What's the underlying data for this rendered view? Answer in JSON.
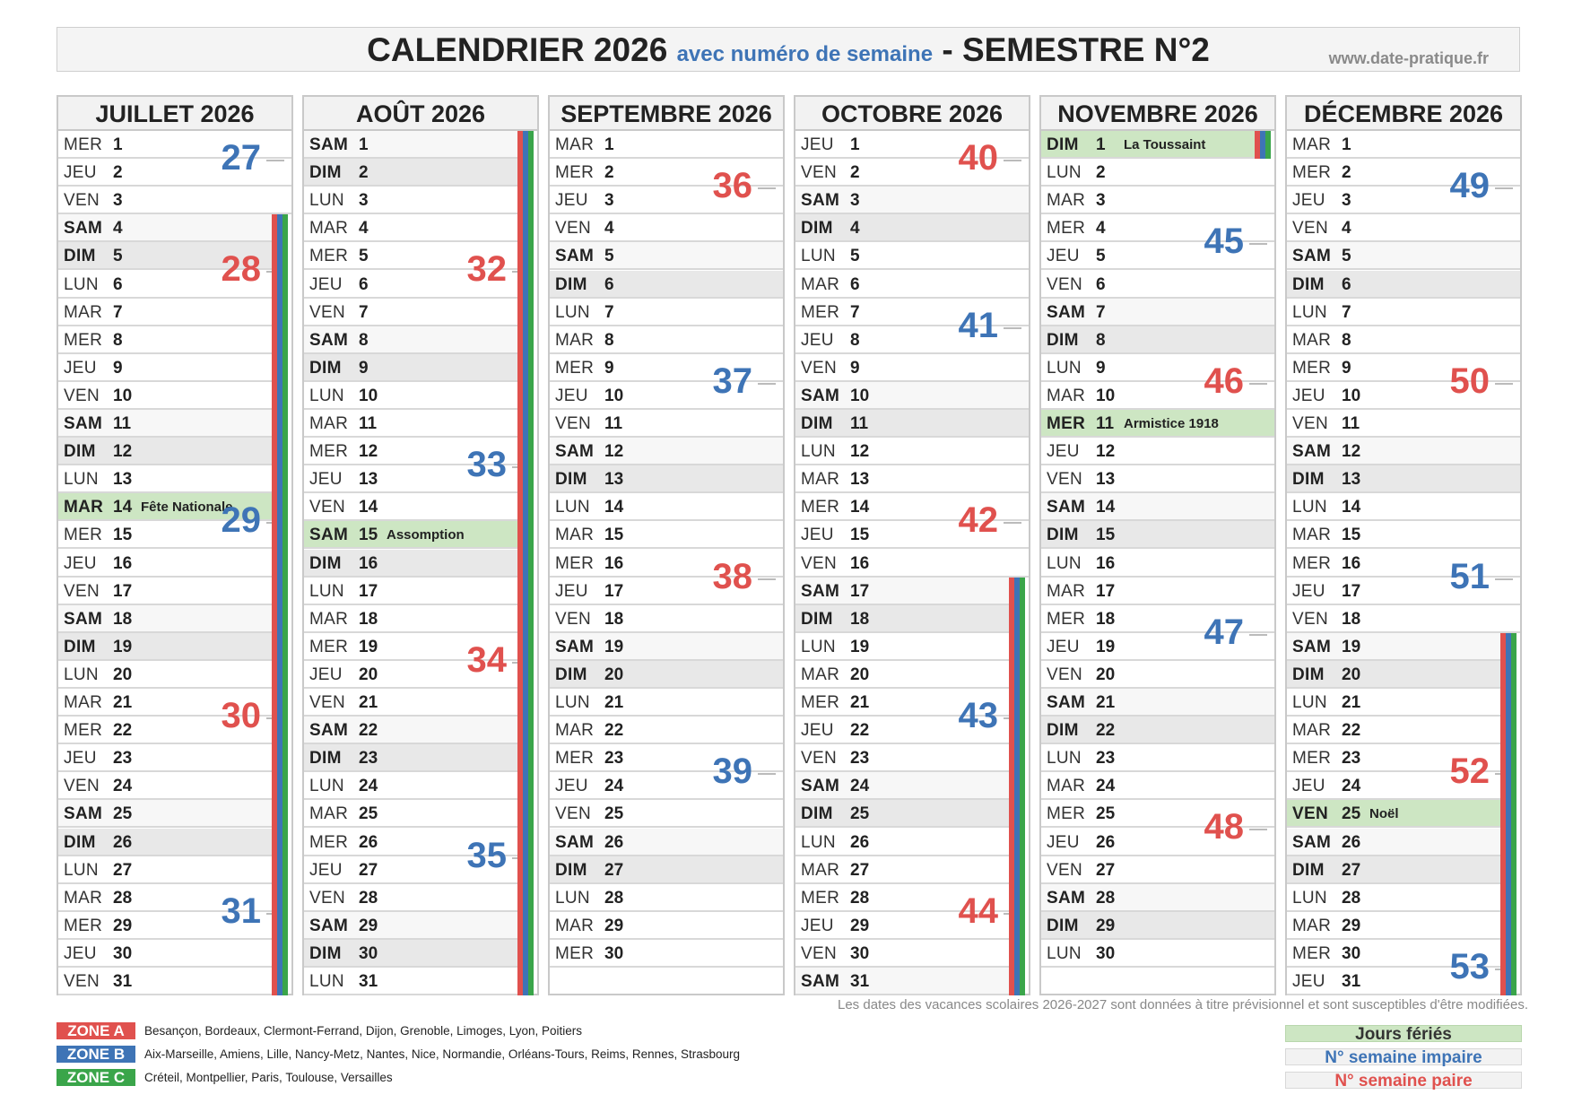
{
  "header": {
    "title": "CALENDRIER 2026",
    "subtitle": "avec numéro de semaine",
    "dash": "-",
    "semester": "SEMESTRE N°2",
    "website": "www.date-pratique.fr"
  },
  "colors": {
    "zone_a": "#e0514e",
    "zone_b": "#3e74b6",
    "zone_c": "#3aa54a",
    "holiday": "#cde6c3",
    "week_odd": "#3e74b6",
    "week_even": "#e0514e"
  },
  "months": [
    {
      "name": "JUILLET 2026",
      "days": [
        {
          "d": "MER",
          "n": "1"
        },
        {
          "d": "JEU",
          "n": "2"
        },
        {
          "d": "VEN",
          "n": "3"
        },
        {
          "d": "SAM",
          "n": "4"
        },
        {
          "d": "DIM",
          "n": "5"
        },
        {
          "d": "LUN",
          "n": "6"
        },
        {
          "d": "MAR",
          "n": "7"
        },
        {
          "d": "MER",
          "n": "8"
        },
        {
          "d": "JEU",
          "n": "9"
        },
        {
          "d": "VEN",
          "n": "10"
        },
        {
          "d": "SAM",
          "n": "11"
        },
        {
          "d": "DIM",
          "n": "12"
        },
        {
          "d": "LUN",
          "n": "13"
        },
        {
          "d": "MAR",
          "n": "14",
          "h": "Fête Nationale"
        },
        {
          "d": "MER",
          "n": "15"
        },
        {
          "d": "JEU",
          "n": "16"
        },
        {
          "d": "VEN",
          "n": "17"
        },
        {
          "d": "SAM",
          "n": "18"
        },
        {
          "d": "DIM",
          "n": "19"
        },
        {
          "d": "LUN",
          "n": "20"
        },
        {
          "d": "MAR",
          "n": "21"
        },
        {
          "d": "MER",
          "n": "22"
        },
        {
          "d": "JEU",
          "n": "23"
        },
        {
          "d": "VEN",
          "n": "24"
        },
        {
          "d": "SAM",
          "n": "25"
        },
        {
          "d": "DIM",
          "n": "26"
        },
        {
          "d": "LUN",
          "n": "27"
        },
        {
          "d": "MAR",
          "n": "28"
        },
        {
          "d": "MER",
          "n": "29"
        },
        {
          "d": "JEU",
          "n": "30"
        },
        {
          "d": "VEN",
          "n": "31"
        }
      ],
      "weeks": [
        {
          "w": "27",
          "row": 0
        },
        {
          "w": "28",
          "row": 4
        },
        {
          "w": "29",
          "row": 13
        },
        {
          "w": "30",
          "row": 20
        },
        {
          "w": "31",
          "row": 27
        }
      ],
      "vacation": {
        "from": 3,
        "to": 30
      }
    },
    {
      "name": "AOÛT 2026",
      "days": [
        {
          "d": "SAM",
          "n": "1"
        },
        {
          "d": "DIM",
          "n": "2"
        },
        {
          "d": "LUN",
          "n": "3"
        },
        {
          "d": "MAR",
          "n": "4"
        },
        {
          "d": "MER",
          "n": "5"
        },
        {
          "d": "JEU",
          "n": "6"
        },
        {
          "d": "VEN",
          "n": "7"
        },
        {
          "d": "SAM",
          "n": "8"
        },
        {
          "d": "DIM",
          "n": "9"
        },
        {
          "d": "LUN",
          "n": "10"
        },
        {
          "d": "MAR",
          "n": "11"
        },
        {
          "d": "MER",
          "n": "12"
        },
        {
          "d": "JEU",
          "n": "13"
        },
        {
          "d": "VEN",
          "n": "14"
        },
        {
          "d": "SAM",
          "n": "15",
          "h": "Assomption"
        },
        {
          "d": "DIM",
          "n": "16"
        },
        {
          "d": "LUN",
          "n": "17"
        },
        {
          "d": "MAR",
          "n": "18"
        },
        {
          "d": "MER",
          "n": "19"
        },
        {
          "d": "JEU",
          "n": "20"
        },
        {
          "d": "VEN",
          "n": "21"
        },
        {
          "d": "SAM",
          "n": "22"
        },
        {
          "d": "DIM",
          "n": "23"
        },
        {
          "d": "LUN",
          "n": "24"
        },
        {
          "d": "MAR",
          "n": "25"
        },
        {
          "d": "MER",
          "n": "26"
        },
        {
          "d": "JEU",
          "n": "27"
        },
        {
          "d": "VEN",
          "n": "28"
        },
        {
          "d": "SAM",
          "n": "29"
        },
        {
          "d": "DIM",
          "n": "30"
        },
        {
          "d": "LUN",
          "n": "31"
        }
      ],
      "weeks": [
        {
          "w": "32",
          "row": 4
        },
        {
          "w": "33",
          "row": 11
        },
        {
          "w": "34",
          "row": 18
        },
        {
          "w": "35",
          "row": 25
        }
      ],
      "vacation": {
        "from": 0,
        "to": 30
      }
    },
    {
      "name": "SEPTEMBRE 2026",
      "days": [
        {
          "d": "MAR",
          "n": "1"
        },
        {
          "d": "MER",
          "n": "2"
        },
        {
          "d": "JEU",
          "n": "3"
        },
        {
          "d": "VEN",
          "n": "4"
        },
        {
          "d": "SAM",
          "n": "5"
        },
        {
          "d": "DIM",
          "n": "6"
        },
        {
          "d": "LUN",
          "n": "7"
        },
        {
          "d": "MAR",
          "n": "8"
        },
        {
          "d": "MER",
          "n": "9"
        },
        {
          "d": "JEU",
          "n": "10"
        },
        {
          "d": "VEN",
          "n": "11"
        },
        {
          "d": "SAM",
          "n": "12"
        },
        {
          "d": "DIM",
          "n": "13"
        },
        {
          "d": "LUN",
          "n": "14"
        },
        {
          "d": "MAR",
          "n": "15"
        },
        {
          "d": "MER",
          "n": "16"
        },
        {
          "d": "JEU",
          "n": "17"
        },
        {
          "d": "VEN",
          "n": "18"
        },
        {
          "d": "SAM",
          "n": "19"
        },
        {
          "d": "DIM",
          "n": "20"
        },
        {
          "d": "LUN",
          "n": "21"
        },
        {
          "d": "MAR",
          "n": "22"
        },
        {
          "d": "MER",
          "n": "23"
        },
        {
          "d": "JEU",
          "n": "24"
        },
        {
          "d": "VEN",
          "n": "25"
        },
        {
          "d": "SAM",
          "n": "26"
        },
        {
          "d": "DIM",
          "n": "27"
        },
        {
          "d": "LUN",
          "n": "28"
        },
        {
          "d": "MAR",
          "n": "29"
        },
        {
          "d": "MER",
          "n": "30"
        }
      ],
      "weeks": [
        {
          "w": "36",
          "row": 1
        },
        {
          "w": "37",
          "row": 8
        },
        {
          "w": "38",
          "row": 15
        },
        {
          "w": "39",
          "row": 22
        }
      ],
      "vacation": null
    },
    {
      "name": "OCTOBRE 2026",
      "days": [
        {
          "d": "JEU",
          "n": "1"
        },
        {
          "d": "VEN",
          "n": "2"
        },
        {
          "d": "SAM",
          "n": "3"
        },
        {
          "d": "DIM",
          "n": "4"
        },
        {
          "d": "LUN",
          "n": "5"
        },
        {
          "d": "MAR",
          "n": "6"
        },
        {
          "d": "MER",
          "n": "7"
        },
        {
          "d": "JEU",
          "n": "8"
        },
        {
          "d": "VEN",
          "n": "9"
        },
        {
          "d": "SAM",
          "n": "10"
        },
        {
          "d": "DIM",
          "n": "11"
        },
        {
          "d": "LUN",
          "n": "12"
        },
        {
          "d": "MAR",
          "n": "13"
        },
        {
          "d": "MER",
          "n": "14"
        },
        {
          "d": "JEU",
          "n": "15"
        },
        {
          "d": "VEN",
          "n": "16"
        },
        {
          "d": "SAM",
          "n": "17"
        },
        {
          "d": "DIM",
          "n": "18"
        },
        {
          "d": "LUN",
          "n": "19"
        },
        {
          "d": "MAR",
          "n": "20"
        },
        {
          "d": "MER",
          "n": "21"
        },
        {
          "d": "JEU",
          "n": "22"
        },
        {
          "d": "VEN",
          "n": "23"
        },
        {
          "d": "SAM",
          "n": "24"
        },
        {
          "d": "DIM",
          "n": "25"
        },
        {
          "d": "LUN",
          "n": "26"
        },
        {
          "d": "MAR",
          "n": "27"
        },
        {
          "d": "MER",
          "n": "28"
        },
        {
          "d": "JEU",
          "n": "29"
        },
        {
          "d": "VEN",
          "n": "30"
        },
        {
          "d": "SAM",
          "n": "31"
        }
      ],
      "weeks": [
        {
          "w": "40",
          "row": 0
        },
        {
          "w": "41",
          "row": 6
        },
        {
          "w": "42",
          "row": 13
        },
        {
          "w": "43",
          "row": 20
        },
        {
          "w": "44",
          "row": 27
        }
      ],
      "vacation": {
        "from": 16,
        "to": 30
      }
    },
    {
      "name": "NOVEMBRE 2026",
      "days": [
        {
          "d": "DIM",
          "n": "1",
          "h": "La Toussaint"
        },
        {
          "d": "LUN",
          "n": "2"
        },
        {
          "d": "MAR",
          "n": "3"
        },
        {
          "d": "MER",
          "n": "4"
        },
        {
          "d": "JEU",
          "n": "5"
        },
        {
          "d": "VEN",
          "n": "6"
        },
        {
          "d": "SAM",
          "n": "7"
        },
        {
          "d": "DIM",
          "n": "8"
        },
        {
          "d": "LUN",
          "n": "9"
        },
        {
          "d": "MAR",
          "n": "10"
        },
        {
          "d": "MER",
          "n": "11",
          "h": "Armistice 1918"
        },
        {
          "d": "JEU",
          "n": "12"
        },
        {
          "d": "VEN",
          "n": "13"
        },
        {
          "d": "SAM",
          "n": "14"
        },
        {
          "d": "DIM",
          "n": "15"
        },
        {
          "d": "LUN",
          "n": "16"
        },
        {
          "d": "MAR",
          "n": "17"
        },
        {
          "d": "MER",
          "n": "18"
        },
        {
          "d": "JEU",
          "n": "19"
        },
        {
          "d": "VEN",
          "n": "20"
        },
        {
          "d": "SAM",
          "n": "21"
        },
        {
          "d": "DIM",
          "n": "22"
        },
        {
          "d": "LUN",
          "n": "23"
        },
        {
          "d": "MAR",
          "n": "24"
        },
        {
          "d": "MER",
          "n": "25"
        },
        {
          "d": "JEU",
          "n": "26"
        },
        {
          "d": "VEN",
          "n": "27"
        },
        {
          "d": "SAM",
          "n": "28"
        },
        {
          "d": "DIM",
          "n": "29"
        },
        {
          "d": "LUN",
          "n": "30"
        }
      ],
      "weeks": [
        {
          "w": "45",
          "row": 3
        },
        {
          "w": "46",
          "row": 8
        },
        {
          "w": "47",
          "row": 17
        },
        {
          "w": "48",
          "row": 24
        }
      ],
      "vacation": {
        "from": 0,
        "to": 0
      }
    },
    {
      "name": "DÉCEMBRE 2026",
      "days": [
        {
          "d": "MAR",
          "n": "1"
        },
        {
          "d": "MER",
          "n": "2"
        },
        {
          "d": "JEU",
          "n": "3"
        },
        {
          "d": "VEN",
          "n": "4"
        },
        {
          "d": "SAM",
          "n": "5"
        },
        {
          "d": "DIM",
          "n": "6"
        },
        {
          "d": "LUN",
          "n": "7"
        },
        {
          "d": "MAR",
          "n": "8"
        },
        {
          "d": "MER",
          "n": "9"
        },
        {
          "d": "JEU",
          "n": "10"
        },
        {
          "d": "VEN",
          "n": "11"
        },
        {
          "d": "SAM",
          "n": "12"
        },
        {
          "d": "DIM",
          "n": "13"
        },
        {
          "d": "LUN",
          "n": "14"
        },
        {
          "d": "MAR",
          "n": "15"
        },
        {
          "d": "MER",
          "n": "16"
        },
        {
          "d": "JEU",
          "n": "17"
        },
        {
          "d": "VEN",
          "n": "18"
        },
        {
          "d": "SAM",
          "n": "19"
        },
        {
          "d": "DIM",
          "n": "20"
        },
        {
          "d": "LUN",
          "n": "21"
        },
        {
          "d": "MAR",
          "n": "22"
        },
        {
          "d": "MER",
          "n": "23"
        },
        {
          "d": "JEU",
          "n": "24"
        },
        {
          "d": "VEN",
          "n": "25",
          "h": "Noël"
        },
        {
          "d": "SAM",
          "n": "26"
        },
        {
          "d": "DIM",
          "n": "27"
        },
        {
          "d": "LUN",
          "n": "28"
        },
        {
          "d": "MAR",
          "n": "29"
        },
        {
          "d": "MER",
          "n": "30"
        },
        {
          "d": "JEU",
          "n": "31"
        }
      ],
      "weeks": [
        {
          "w": "49",
          "row": 1
        },
        {
          "w": "50",
          "row": 8
        },
        {
          "w": "51",
          "row": 15
        },
        {
          "w": "52",
          "row": 22
        },
        {
          "w": "53",
          "row": 29
        }
      ],
      "vacation": {
        "from": 18,
        "to": 30
      }
    }
  ],
  "footer": {
    "note": "Les dates des vacances scolaires 2026-2027 sont données à titre prévisionnel et sont susceptibles d'être modifiées.",
    "zones": [
      {
        "tag": "ZONE A",
        "cities": "Besançon, Bordeaux, Clermont-Ferrand, Dijon, Grenoble, Limoges, Lyon, Poitiers"
      },
      {
        "tag": "ZONE B",
        "cities": "Aix-Marseille, Amiens, Lille, Nancy-Metz, Nantes, Nice, Normandie, Orléans-Tours, Reims, Rennes, Strasbourg"
      },
      {
        "tag": "ZONE C",
        "cities": "Créteil, Montpellier, Paris, Toulouse, Versailles"
      }
    ],
    "legend": {
      "holidays": "Jours fériés",
      "odd_week": "N° semaine impaire",
      "even_week": "N° semaine paire"
    }
  }
}
